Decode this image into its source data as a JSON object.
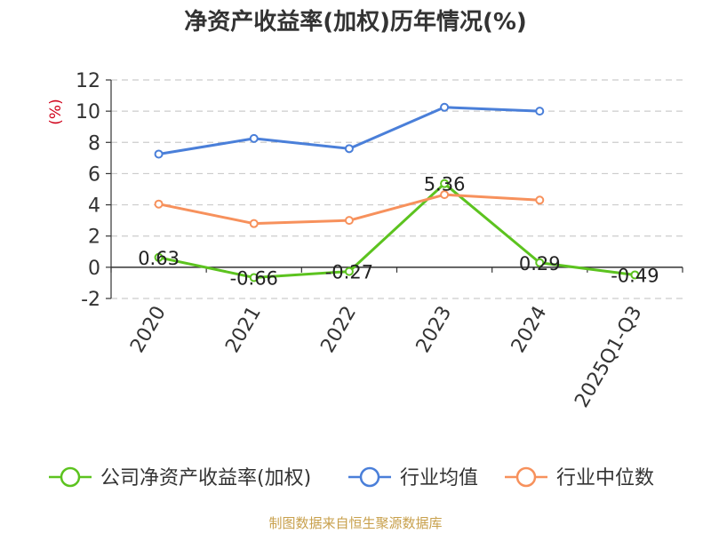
{
  "chart_data": {
    "type": "line",
    "title": "净资产收益率(加权)历年情况(%)",
    "ylabel": "(%)",
    "xlabel": "",
    "categories": [
      "2020",
      "2021",
      "2022",
      "2023",
      "2024",
      "2025Q1-Q3"
    ],
    "ylim": [
      -2,
      12
    ],
    "yticks": [
      -2,
      0,
      2,
      4,
      6,
      8,
      10,
      12
    ],
    "grid": true,
    "legend_position": "bottom",
    "series": [
      {
        "name": "公司净资产收益率(加权)",
        "color": "#5cc31f",
        "values": [
          0.63,
          -0.66,
          -0.27,
          5.36,
          0.29,
          -0.49
        ],
        "data_labels": [
          "0.63",
          "-0.66",
          "-0.27",
          "5.36",
          "0.29",
          "-0.49"
        ]
      },
      {
        "name": "行业均值",
        "color": "#4a7fd9",
        "values": [
          7.25,
          8.25,
          7.6,
          10.25,
          10.0,
          null
        ]
      },
      {
        "name": "行业中位数",
        "color": "#f7915c",
        "values": [
          4.05,
          2.8,
          3.0,
          4.65,
          4.3,
          null
        ]
      }
    ]
  },
  "source": "制图数据来自恒生聚源数据库"
}
